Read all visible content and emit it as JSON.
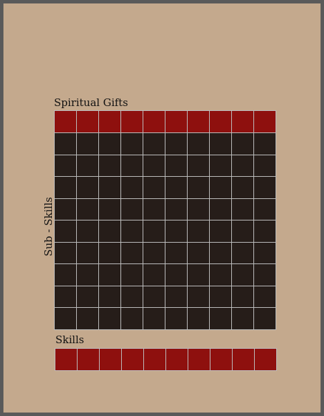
{
  "labels": {
    "spiritual_gifts": "Spiritual Gifts",
    "sub_skills": "Sub - Skills",
    "skills": "Skills"
  },
  "grid": {
    "columns": 10,
    "rows": 9
  },
  "colors": {
    "background": "#c4a98d",
    "frame": "#5a5a5a",
    "slot_red": "#8e100e",
    "slot_dark": "#261d19",
    "grid_line": "#bdbdbd"
  }
}
